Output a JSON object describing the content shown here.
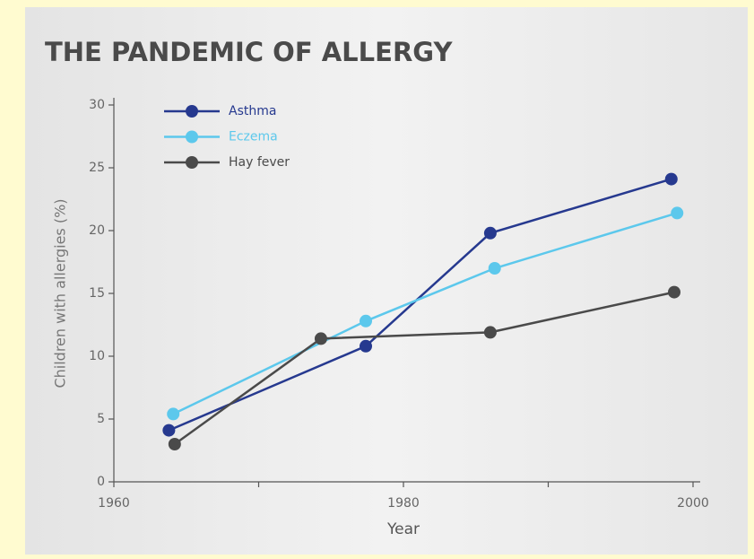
{
  "chart_data": {
    "type": "line",
    "title": "THE PANDEMIC OF ALLERGY",
    "x_label": "Year",
    "y_label": "Children with allergies (%)",
    "xlim": [
      1960,
      2000
    ],
    "xticks": [
      1960,
      1980,
      2000
    ],
    "xminor_ticks": [
      1970,
      1990
    ],
    "ylim": [
      0,
      30
    ],
    "yticks": [
      0,
      5,
      10,
      15,
      20,
      25,
      30
    ],
    "legend": "upper left",
    "series": [
      {
        "name": "Asthma",
        "color": "#26398f",
        "x": [
          1963.8,
          1977.4,
          1986,
          1998.5
        ],
        "values": [
          4.1,
          10.8,
          19.8,
          24.1
        ]
      },
      {
        "name": "Eczema",
        "color": "#5cc8ec",
        "x": [
          1964.1,
          1977.4,
          1986.3,
          1998.9
        ],
        "values": [
          5.4,
          12.8,
          17.0,
          21.4
        ]
      },
      {
        "name": "Hay fever",
        "color": "#4a4a4a",
        "x": [
          1964.2,
          1974.3,
          1986,
          1998.7
        ],
        "values": [
          3.0,
          11.4,
          11.9,
          15.1
        ]
      }
    ]
  }
}
